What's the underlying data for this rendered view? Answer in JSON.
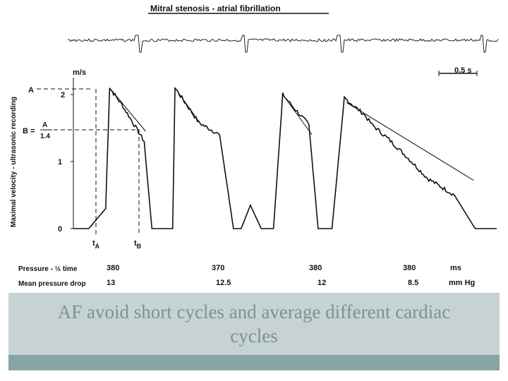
{
  "figure": {
    "title": "Mitral stenosis - atrial fibrillation",
    "ylabel": "Maximal velocity - ultrasonic recording",
    "unit": "m/s",
    "y_ticks": [
      "0",
      "1",
      "2"
    ],
    "scale_bar_label": "0.5 s",
    "marker_A": "A",
    "marker_B_prefix": "B =",
    "marker_B_num": "A",
    "marker_B_den": "1.4",
    "tA_main": "t",
    "tA_sub": "A",
    "tB_main": "t",
    "tB_sub": "B",
    "rows": [
      {
        "label": "Pressure - ½ time",
        "values": [
          "380",
          "370",
          "380",
          "380"
        ],
        "unit": "ms"
      },
      {
        "label": "Mean pressure drop",
        "values": [
          "13",
          "12.5",
          "12",
          "8.5"
        ],
        "unit": "mm Hg"
      }
    ]
  },
  "chart_data": {
    "type": "line",
    "title": "Mitral stenosis - atrial fibrillation",
    "xlabel": "",
    "ylabel": "Maximal velocity - ultrasonic recording (m/s)",
    "x_unit": "s",
    "ylim": [
      0,
      2.2
    ],
    "yticks": [
      0,
      1,
      2
    ],
    "grid": false,
    "series": [
      {
        "x": [
          0,
          0.2,
          0.42,
          0.47,
          0.63,
          0.79,
          0.92,
          1.02,
          1.12,
          1.29,
          1.32,
          1.5,
          1.63,
          1.9,
          2.08,
          2.18,
          2.3,
          2.44,
          2.52,
          2.6,
          2.72,
          2.85,
          3.06,
          3.18,
          3.24,
          3.28,
          3.36,
          3.52,
          3.78,
          3.88,
          4.1,
          4.35,
          4.6,
          4.95,
          5.22,
          5.3,
          5.38,
          5.5
        ],
        "y": [
          0,
          0,
          0.3,
          2.1,
          1.85,
          1.55,
          1.3,
          0,
          0,
          0,
          2.1,
          1.8,
          1.58,
          1.4,
          0,
          0,
          0.35,
          0,
          0,
          0,
          2.0,
          1.82,
          1.55,
          0,
          0,
          0,
          0,
          1.95,
          1.7,
          1.55,
          1.33,
          1.05,
          0.75,
          0.5,
          0,
          0,
          0,
          0
        ]
      }
    ],
    "annotations": [
      {
        "label": "A",
        "y": 2.1
      },
      {
        "label": "B = A / 1.4",
        "y": 1.5
      },
      {
        "label": "tA",
        "x": 0.47
      },
      {
        "label": "tB",
        "x": 0.92
      }
    ],
    "table": [
      {
        "label": "Pressure - ½ time",
        "values": [
          380,
          370,
          380,
          380
        ],
        "unit": "ms"
      },
      {
        "label": "Mean pressure drop",
        "values": [
          13,
          12.5,
          12,
          8.5
        ],
        "unit": "mm Hg"
      }
    ]
  },
  "caption": "AF avoid short cycles and average different cardiac cycles"
}
